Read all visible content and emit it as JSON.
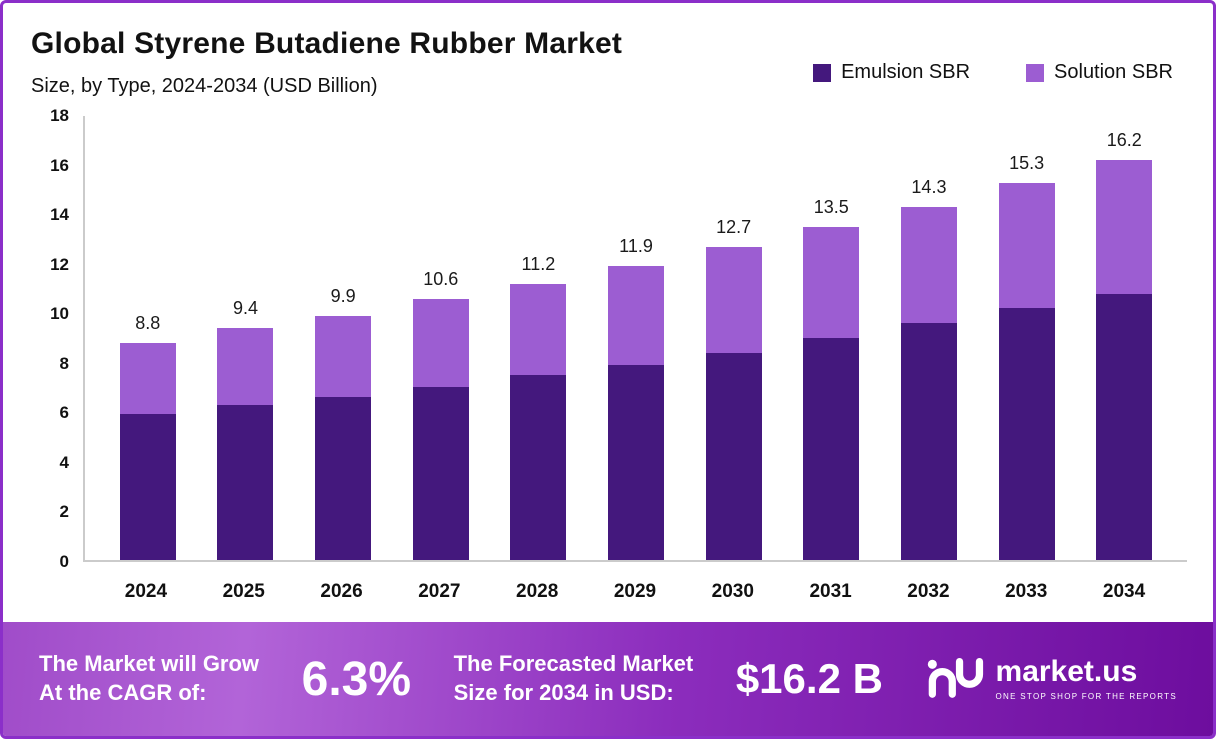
{
  "chart_data": {
    "type": "bar",
    "stacked": true,
    "title": "Global Styrene Butadiene Rubber Market",
    "subtitle": "Size, by Type, 2024-2034 (USD Billion)",
    "categories": [
      "2024",
      "2025",
      "2026",
      "2027",
      "2028",
      "2029",
      "2030",
      "2031",
      "2032",
      "2033",
      "2034"
    ],
    "series": [
      {
        "name": "Emulsion SBR",
        "color": "#44187d",
        "values": [
          5.9,
          6.3,
          6.6,
          7.0,
          7.5,
          7.9,
          8.4,
          9.0,
          9.6,
          10.2,
          10.8
        ]
      },
      {
        "name": "Solution SBR",
        "color": "#9c5dd2",
        "values": [
          2.9,
          3.1,
          3.3,
          3.6,
          3.7,
          4.0,
          4.3,
          4.5,
          4.7,
          5.1,
          5.4
        ]
      }
    ],
    "totals": [
      8.8,
      9.4,
      9.9,
      10.6,
      11.2,
      11.9,
      12.7,
      13.5,
      14.3,
      15.3,
      16.2
    ],
    "ylim": [
      0,
      18
    ],
    "yticks": [
      0,
      2,
      4,
      6,
      8,
      10,
      12,
      14,
      16,
      18
    ],
    "grid": false,
    "legend_position": "top-right",
    "xlabel": "",
    "ylabel": ""
  },
  "banner": {
    "left_line1": "The Market will Grow",
    "left_line2": "At the CAGR of:",
    "cagr": "6.3%",
    "mid_line1": "The Forecasted Market",
    "mid_line2": "Size for 2034 in USD:",
    "forecast": "$16.2 B",
    "brand": "market.us",
    "tagline": "ONE STOP SHOP FOR THE REPORTS"
  }
}
